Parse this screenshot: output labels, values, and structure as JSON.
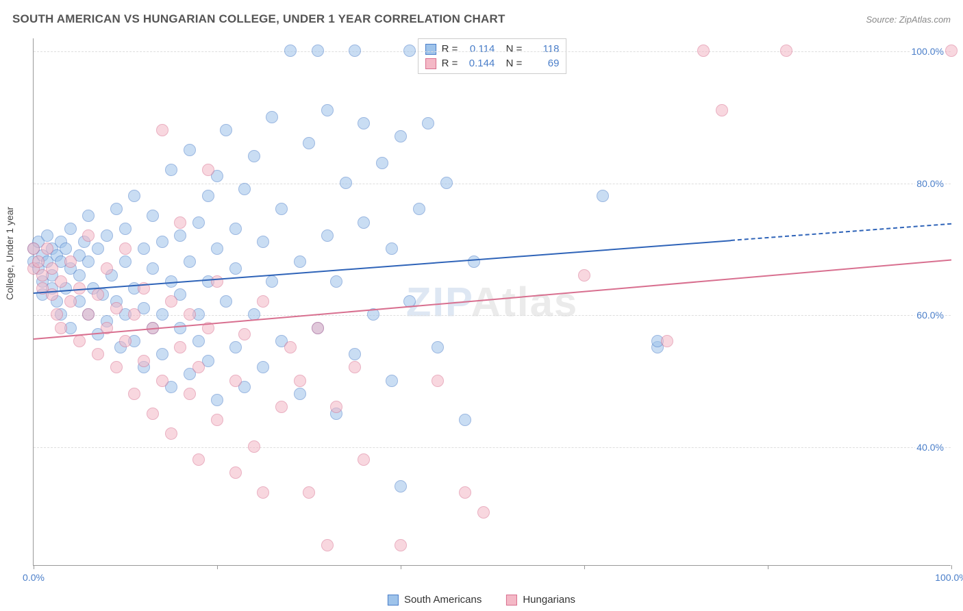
{
  "title": "SOUTH AMERICAN VS HUNGARIAN COLLEGE, UNDER 1 YEAR CORRELATION CHART",
  "source": "Source: ZipAtlas.com",
  "ylabel": "College, Under 1 year",
  "watermark_a": "ZIP",
  "watermark_b": "Atlas",
  "chart": {
    "type": "scatter",
    "xlim": [
      0,
      100
    ],
    "ylim": [
      22,
      102
    ],
    "xticks": [
      0,
      20,
      40,
      60,
      80,
      100
    ],
    "yticks": [
      40,
      60,
      80,
      100
    ],
    "xtick_labels": [
      "0.0%",
      "",
      "",
      "",
      "",
      "100.0%"
    ],
    "ytick_labels": [
      "40.0%",
      "60.0%",
      "80.0%",
      "100.0%"
    ],
    "grid_color": "#dddddd",
    "axis_color": "#999999",
    "background": "#ffffff",
    "label_color": "#4a7ec9",
    "marker_radius": 9,
    "marker_opacity": 0.55,
    "series": [
      {
        "name": "South Americans",
        "fill": "#9ec3ea",
        "stroke": "#4a7ec9",
        "trend_color": "#2e63b8",
        "trend_y0": 63.5,
        "trend_y100": 74.0,
        "trend_solid_until_x": 76,
        "R": "0.114",
        "N": "118",
        "points": [
          [
            0,
            70
          ],
          [
            0,
            68
          ],
          [
            0.5,
            67
          ],
          [
            0.5,
            71
          ],
          [
            1,
            69
          ],
          [
            1,
            65
          ],
          [
            1,
            63
          ],
          [
            1.5,
            68
          ],
          [
            1.5,
            72
          ],
          [
            2,
            64
          ],
          [
            2,
            70
          ],
          [
            2,
            66
          ],
          [
            2.5,
            69
          ],
          [
            2.5,
            62
          ],
          [
            3,
            68
          ],
          [
            3,
            71
          ],
          [
            3,
            60
          ],
          [
            3.5,
            64
          ],
          [
            3.5,
            70
          ],
          [
            4,
            67
          ],
          [
            4,
            73
          ],
          [
            4,
            58
          ],
          [
            5,
            69
          ],
          [
            5,
            62
          ],
          [
            5,
            66
          ],
          [
            5.5,
            71
          ],
          [
            6,
            60
          ],
          [
            6,
            68
          ],
          [
            6,
            75
          ],
          [
            6.5,
            64
          ],
          [
            7,
            57
          ],
          [
            7,
            70
          ],
          [
            7.5,
            63
          ],
          [
            8,
            72
          ],
          [
            8,
            59
          ],
          [
            8.5,
            66
          ],
          [
            9,
            62
          ],
          [
            9,
            76
          ],
          [
            9.5,
            55
          ],
          [
            10,
            68
          ],
          [
            10,
            60
          ],
          [
            10,
            73
          ],
          [
            11,
            64
          ],
          [
            11,
            78
          ],
          [
            11,
            56
          ],
          [
            12,
            70
          ],
          [
            12,
            52
          ],
          [
            12,
            61
          ],
          [
            13,
            67
          ],
          [
            13,
            75
          ],
          [
            13,
            58
          ],
          [
            14,
            54
          ],
          [
            14,
            71
          ],
          [
            14,
            60
          ],
          [
            15,
            65
          ],
          [
            15,
            49
          ],
          [
            15,
            82
          ],
          [
            16,
            72
          ],
          [
            16,
            58
          ],
          [
            16,
            63
          ],
          [
            17,
            68
          ],
          [
            17,
            51
          ],
          [
            17,
            85
          ],
          [
            18,
            56
          ],
          [
            18,
            74
          ],
          [
            18,
            60
          ],
          [
            19,
            78
          ],
          [
            19,
            53
          ],
          [
            19,
            65
          ],
          [
            20,
            70
          ],
          [
            20,
            47
          ],
          [
            20,
            81
          ],
          [
            21,
            62
          ],
          [
            21,
            88
          ],
          [
            22,
            55
          ],
          [
            22,
            73
          ],
          [
            22,
            67
          ],
          [
            23,
            49
          ],
          [
            23,
            79
          ],
          [
            24,
            60
          ],
          [
            24,
            84
          ],
          [
            25,
            52
          ],
          [
            25,
            71
          ],
          [
            26,
            65
          ],
          [
            26,
            90
          ],
          [
            27,
            56
          ],
          [
            27,
            76
          ],
          [
            28,
            100
          ],
          [
            29,
            48
          ],
          [
            29,
            68
          ],
          [
            30,
            86
          ],
          [
            31,
            100
          ],
          [
            31,
            58
          ],
          [
            32,
            72
          ],
          [
            32,
            91
          ],
          [
            33,
            45
          ],
          [
            33,
            65
          ],
          [
            34,
            80
          ],
          [
            35,
            100
          ],
          [
            35,
            54
          ],
          [
            36,
            74
          ],
          [
            36,
            89
          ],
          [
            37,
            60
          ],
          [
            38,
            83
          ],
          [
            39,
            50
          ],
          [
            39,
            70
          ],
          [
            40,
            87
          ],
          [
            40,
            34
          ],
          [
            41,
            100
          ],
          [
            41,
            62
          ],
          [
            42,
            76
          ],
          [
            43,
            89
          ],
          [
            44,
            55
          ],
          [
            45,
            80
          ],
          [
            47,
            44
          ],
          [
            48,
            68
          ],
          [
            62,
            78
          ],
          [
            68,
            55
          ],
          [
            68,
            56
          ]
        ]
      },
      {
        "name": "Hungarians",
        "fill": "#f4b8c6",
        "stroke": "#d86f8f",
        "trend_color": "#d86f8f",
        "trend_y0": 56.5,
        "trend_y100": 68.5,
        "trend_solid_until_x": 100,
        "R": "0.144",
        "N": "69",
        "points": [
          [
            0,
            70
          ],
          [
            0,
            67
          ],
          [
            0.5,
            68
          ],
          [
            1,
            66
          ],
          [
            1,
            64
          ],
          [
            1.5,
            70
          ],
          [
            2,
            63
          ],
          [
            2,
            67
          ],
          [
            2.5,
            60
          ],
          [
            3,
            65
          ],
          [
            3,
            58
          ],
          [
            4,
            62
          ],
          [
            4,
            68
          ],
          [
            5,
            56
          ],
          [
            5,
            64
          ],
          [
            6,
            60
          ],
          [
            6,
            72
          ],
          [
            7,
            54
          ],
          [
            7,
            63
          ],
          [
            8,
            58
          ],
          [
            8,
            67
          ],
          [
            9,
            52
          ],
          [
            9,
            61
          ],
          [
            10,
            56
          ],
          [
            10,
            70
          ],
          [
            11,
            48
          ],
          [
            11,
            60
          ],
          [
            12,
            53
          ],
          [
            12,
            64
          ],
          [
            13,
            45
          ],
          [
            13,
            58
          ],
          [
            14,
            88
          ],
          [
            14,
            50
          ],
          [
            15,
            62
          ],
          [
            15,
            42
          ],
          [
            16,
            55
          ],
          [
            16,
            74
          ],
          [
            17,
            48
          ],
          [
            17,
            60
          ],
          [
            18,
            38
          ],
          [
            18,
            52
          ],
          [
            19,
            58
          ],
          [
            19,
            82
          ],
          [
            20,
            44
          ],
          [
            20,
            65
          ],
          [
            22,
            50
          ],
          [
            22,
            36
          ],
          [
            23,
            57
          ],
          [
            24,
            40
          ],
          [
            25,
            62
          ],
          [
            25,
            33
          ],
          [
            27,
            46
          ],
          [
            28,
            55
          ],
          [
            29,
            50
          ],
          [
            30,
            33
          ],
          [
            31,
            58
          ],
          [
            32,
            25
          ],
          [
            33,
            46
          ],
          [
            35,
            52
          ],
          [
            36,
            38
          ],
          [
            40,
            25
          ],
          [
            44,
            50
          ],
          [
            47,
            33
          ],
          [
            49,
            30
          ],
          [
            60,
            66
          ],
          [
            69,
            56
          ],
          [
            73,
            100
          ],
          [
            75,
            91
          ],
          [
            82,
            100
          ],
          [
            100,
            100
          ]
        ]
      }
    ]
  },
  "legend": {
    "item1": "South Americans",
    "item2": "Hungarians"
  }
}
